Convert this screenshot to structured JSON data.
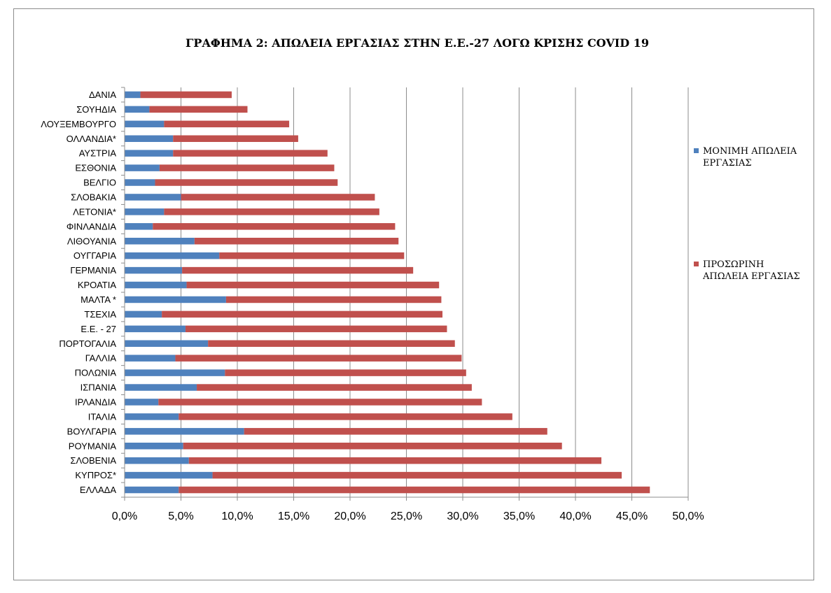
{
  "chart_data": {
    "type": "bar",
    "orientation": "horizontal",
    "stacked": true,
    "title": "ΓΡΑΦΗΜΑ 2: ΑΠΩΛΕΙΑ ΕΡΓΑΣΙΑΣ ΣΤΗΝ Ε.Ε.-27 ΛΟΓΩ ΚΡΙΣΗΣ COVID 19",
    "xlabel": "",
    "ylabel": "",
    "xlim": [
      0,
      0.5
    ],
    "x_ticks": [
      "0,0%",
      "5,0%",
      "10,0%",
      "15,0%",
      "20,0%",
      "25,0%",
      "30,0%",
      "35,0%",
      "40,0%",
      "45,0%",
      "50,0%"
    ],
    "grid": "vertical major gridlines",
    "legend_position": "right",
    "categories": [
      "ΔΑΝΙΑ",
      "ΣΟΥΗΔΙΑ",
      "ΛΟΥΞΕΜΒΟΥΡΓΟ",
      "ΟΛΛΑΝΔΙΑ*",
      "ΑΥΣΤΡΙΑ",
      "ΕΣΘΟΝΙΑ",
      "ΒΕΛΓΙΟ",
      "ΣΛΟΒΑΚΙΑ",
      "ΛΕΤΟΝΙΑ*",
      "ΦΙΝΛΑΝΔΙΑ",
      "ΛΙΘΟΥΑΝΙΑ",
      "ΟΥΓΓΑΡΙΑ",
      "ΓΕΡΜΑΝΙΑ",
      "ΚΡΟΑΤΙΑ",
      "ΜΑΛΤΑ *",
      "ΤΣΕΧΙΑ",
      "Ε.Ε. - 27",
      "ΠΟΡΤΟΓΑΛΙΑ",
      "ΓΑΛΛΙΑ",
      "ΠΟΛΩΝΙΑ",
      "ΙΣΠΑΝΙΑ",
      "ΙΡΛΑΝΔΙΑ",
      "ΙΤΑΛΙΑ",
      "ΒΟΥΛΓΑΡΙΑ",
      "ΡΟΥΜΑΝΙΑ",
      "ΣΛΟΒΕΝΙΑ",
      "ΚΥΠΡΟΣ*",
      "ΕΛΛΑΔΑ"
    ],
    "series": [
      {
        "name": "ΜΟΝΙΜΗ ΑΠΩΛΕΙΑ ΕΡΓΑΣΙΑΣ",
        "color": "#4f81bd",
        "values": [
          0.014,
          0.022,
          0.035,
          0.043,
          0.043,
          0.031,
          0.027,
          0.05,
          0.035,
          0.025,
          0.062,
          0.084,
          0.051,
          0.055,
          0.09,
          0.033,
          0.054,
          0.074,
          0.045,
          0.089,
          0.064,
          0.03,
          0.048,
          0.106,
          0.052,
          0.057,
          0.078,
          0.048
        ]
      },
      {
        "name": "ΠΡΟΣΩΡΙΝΗ ΑΠΩΛΕΙΑ ΕΡΓΑΣΙΑΣ",
        "color": "#c0504d",
        "values": [
          0.081,
          0.087,
          0.111,
          0.111,
          0.137,
          0.155,
          0.162,
          0.172,
          0.191,
          0.215,
          0.181,
          0.164,
          0.205,
          0.224,
          0.191,
          0.249,
          0.232,
          0.219,
          0.254,
          0.214,
          0.244,
          0.287,
          0.296,
          0.269,
          0.336,
          0.366,
          0.363,
          0.418
        ]
      }
    ]
  }
}
